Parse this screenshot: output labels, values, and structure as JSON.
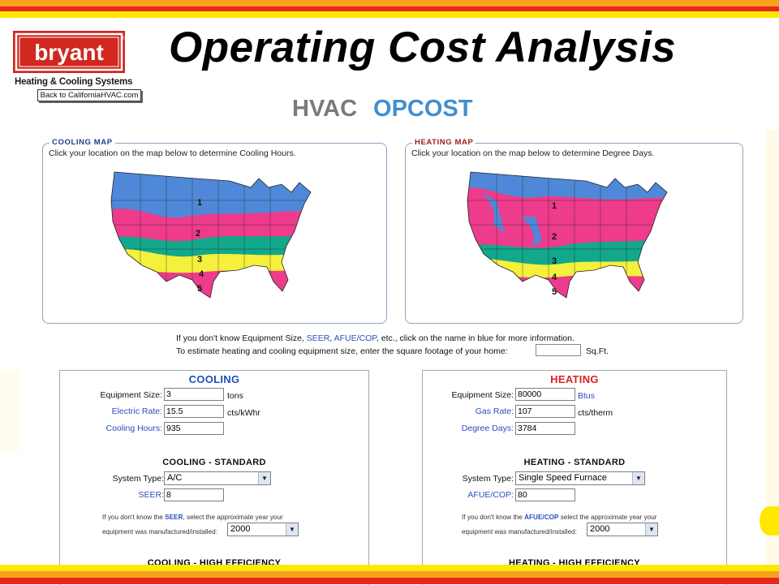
{
  "header": {
    "brand": "bryant",
    "brand_sub": "Heating & Cooling Systems",
    "back_link": "Back to CaliforniaHVAC.com",
    "slide_title": "Operating Cost Analysis",
    "app_title_part1": "HVAC",
    "app_title_part2": "OPCOST"
  },
  "colors": {
    "stripe_orange": "#f6a21c",
    "stripe_red": "#e8281e",
    "stripe_yellow": "#ffe800",
    "link_blue": "#2a4fc0",
    "cooling_title": "#1e50b4",
    "heating_title": "#d92323",
    "zone_blue": "#4f88d8",
    "zone_pink": "#ee3b8c",
    "zone_teal": "#12a88b",
    "zone_yellow": "#f5f03c"
  },
  "cooling_map": {
    "legend": "COOLING MAP",
    "instruction": "Click your location on the map below to determine Cooling Hours.",
    "zones": [
      "1",
      "2",
      "3",
      "4",
      "5"
    ]
  },
  "heating_map": {
    "legend": "HEATING MAP",
    "instruction": "Click your location on the map below to determine Degree Days.",
    "zones": [
      "1",
      "2",
      "3",
      "4",
      "5"
    ]
  },
  "info": {
    "line1_pre": "If you don't know Equipment Size, ",
    "seer": "SEER",
    "afue": "AFUE/COP",
    "line1_post": ", etc., click on the name in blue for more information.",
    "line2": "To estimate heating and cooling equipment size, enter the square footage of your home:",
    "sqft_value": "",
    "sqft_label": "Sq.Ft."
  },
  "cooling": {
    "title": "COOLING",
    "equipment_size_label": "Equipment Size:",
    "equipment_size": "3",
    "equipment_unit": "tons",
    "electric_rate_label": "Electric Rate:",
    "electric_rate": "15.5",
    "electric_unit": "cts/kWhr",
    "cooling_hours_label": "Cooling Hours:",
    "cooling_hours": "935",
    "standard_title": "COOLING - STANDARD",
    "system_type_label": "System Type:",
    "system_type": "A/C",
    "seer_label": "SEER:",
    "seer": "8",
    "help_pre": "If you don't know the ",
    "help_link": "SEER",
    "help_post": ", select the approximate year your",
    "help_line2": "equipment was manufactured/installed:",
    "year": "2000",
    "high_eff_title": "COOLING - HIGH EFFICIENCY"
  },
  "heating": {
    "title": "HEATING",
    "equipment_size_label": "Equipment Size:",
    "equipment_size": "80000",
    "equipment_unit": "Btus",
    "gas_rate_label": "Gas Rate:",
    "gas_rate": "107",
    "gas_unit": "cts/therm",
    "degree_days_label": "Degree Days:",
    "degree_days": "3784",
    "standard_title": "HEATING - STANDARD",
    "system_type_label": "System Type:",
    "system_type": "Single Speed Furnace",
    "afue_label": "AFUE/COP:",
    "afue": "80",
    "help_pre": "If you don't know the ",
    "help_link": "AFUE/COP",
    "help_post": " select the approximate year your",
    "help_line2": "equipment was manufactured/installed:",
    "year": "2000",
    "high_eff_title": "HEATING - HIGH EFFICIENCY"
  }
}
